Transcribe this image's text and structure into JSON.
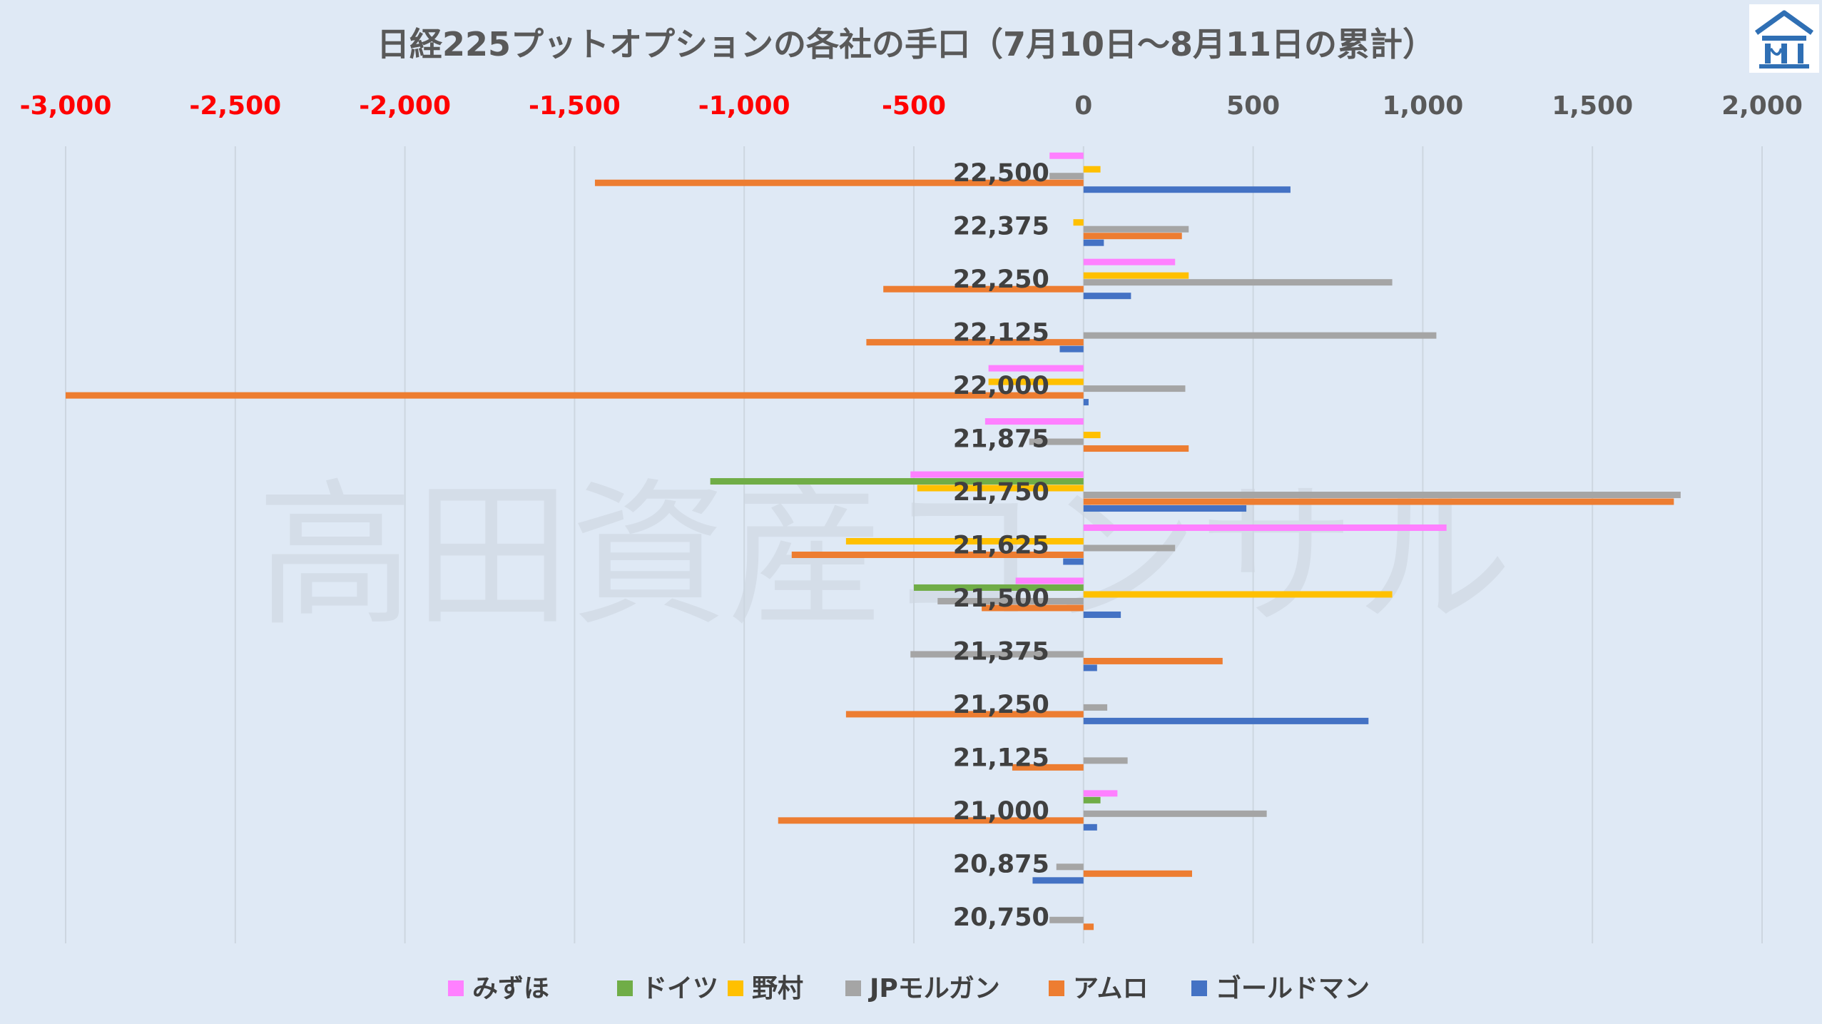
{
  "watermark": "高田資産コンサル",
  "logo": {
    "icon": "building-logo-icon",
    "color": "#2f6fb4"
  },
  "chart_data": {
    "type": "bar",
    "orientation": "horizontal",
    "title": "日経225プットオプションの各社の手口（7月10日～8月11日の累計）",
    "xlim": [
      -3000,
      2000
    ],
    "xticks": [
      -3000,
      -2500,
      -2000,
      -1500,
      -1000,
      -500,
      0,
      500,
      1000,
      1500,
      2000
    ],
    "xtick_labels": [
      "-3,000",
      "-2,500",
      "-2,000",
      "-1,500",
      "-1,000",
      "-500",
      "0",
      "500",
      "1,000",
      "1,500",
      "2,000"
    ],
    "negative_tick_color": "#ff0000",
    "positive_tick_color": "#595959",
    "categories": [
      "22,500",
      "22,375",
      "22,250",
      "22,125",
      "22,000",
      "21,875",
      "21,750",
      "21,625",
      "21,500",
      "21,375",
      "21,250",
      "21,125",
      "21,000",
      "20,875",
      "20,750"
    ],
    "grid": true,
    "legend_position": "bottom",
    "series": [
      {
        "name": "みずほ",
        "color": "#ff80ff",
        "values": [
          -100,
          0,
          270,
          0,
          -280,
          -290,
          -510,
          1070,
          -200,
          0,
          0,
          0,
          100,
          0,
          0
        ]
      },
      {
        "name": "ドイツ",
        "color": "#70ad47",
        "values": [
          0,
          0,
          0,
          0,
          0,
          0,
          -1100,
          0,
          -500,
          0,
          0,
          0,
          50,
          0,
          0
        ]
      },
      {
        "name": "野村",
        "color": "#ffc000",
        "values": [
          50,
          -30,
          310,
          0,
          -280,
          50,
          -490,
          -700,
          910,
          0,
          0,
          0,
          0,
          0,
          0
        ]
      },
      {
        "name": "JPモルガン",
        "color": "#a5a5a5",
        "values": [
          -100,
          310,
          910,
          1040,
          300,
          -160,
          1760,
          270,
          -430,
          -510,
          70,
          130,
          540,
          -80,
          -100
        ]
      },
      {
        "name": "アムロ",
        "color": "#ed7d31",
        "values": [
          -1440,
          290,
          -590,
          -640,
          -3000,
          310,
          1740,
          -860,
          -300,
          410,
          -700,
          -210,
          -900,
          320,
          30
        ]
      },
      {
        "name": "ゴールドマン",
        "color": "#4472c4",
        "values": [
          610,
          60,
          140,
          -70,
          15,
          0,
          480,
          -60,
          110,
          40,
          840,
          0,
          40,
          -150,
          0
        ]
      }
    ]
  }
}
